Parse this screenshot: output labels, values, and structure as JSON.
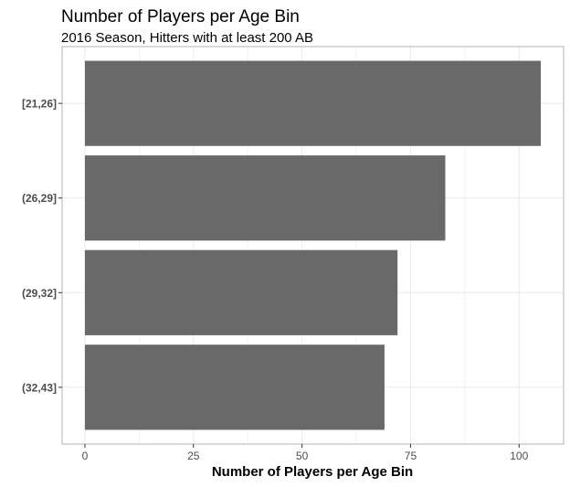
{
  "chart_data": {
    "type": "bar",
    "orientation": "horizontal",
    "title": "Number of Players per Age Bin",
    "subtitle": "2016 Season, Hitters with at least 200 AB",
    "xlabel": "Number of Players per Age Bin",
    "ylabel": "",
    "categories": [
      "[21,26]",
      "(26,29]",
      "(29,32]",
      "(32,43]"
    ],
    "values": [
      105,
      83,
      72,
      69
    ],
    "xlim": [
      0,
      105
    ],
    "xticks": [
      0,
      25,
      50,
      75,
      100
    ],
    "xtick_labels": [
      "0",
      "25",
      "50",
      "75",
      "100"
    ],
    "grid": true,
    "bar_color": "#696969",
    "grid_color": "#ebebeb",
    "panel_border_color": "#b3b3b3"
  }
}
